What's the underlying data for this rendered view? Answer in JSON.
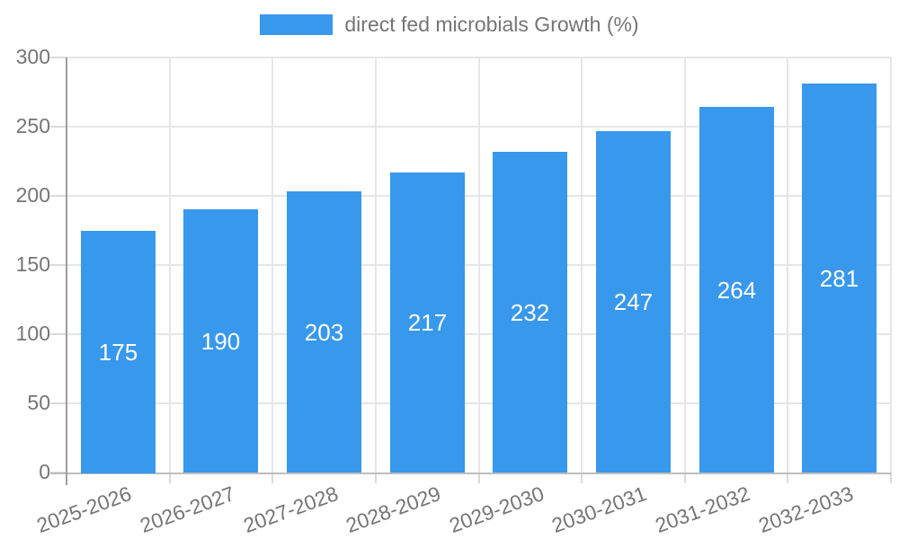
{
  "legend": {
    "label": "direct fed microbials Growth (%)"
  },
  "chart_data": {
    "type": "bar",
    "title": "",
    "categories": [
      "2025-2026",
      "2026-2027",
      "2027-2028",
      "2028-2029",
      "2029-2030",
      "2030-2031",
      "2031-2032",
      "2032-2033"
    ],
    "series": [
      {
        "name": "direct fed microbials Growth (%)",
        "values": [
          175,
          190,
          203,
          217,
          232,
          247,
          264,
          281
        ]
      }
    ],
    "value_labels": [
      175,
      190,
      203,
      217,
      232,
      247,
      264,
      281
    ],
    "xlabel": "",
    "ylabel": "",
    "ylim": [
      0,
      300
    ],
    "yticks": [
      0,
      50,
      100,
      150,
      200,
      250,
      300
    ],
    "grid": "horizontal and vertical gridlines on",
    "legend_position": "top center",
    "value_label_position": "inside bar, centered"
  },
  "style": {
    "bar_color": "#3898EC",
    "bar_value_label_color": "#FFFFFF",
    "axis_text_color": "#757575",
    "legend_text_color": "#757575",
    "grid_color": "#E6E6E6",
    "tick_color": "#DADADA",
    "x_axis_line_color": "#BDBDBD",
    "y_axis_line_color": "#9E9E9E",
    "background_color": "#FFFFFF"
  }
}
